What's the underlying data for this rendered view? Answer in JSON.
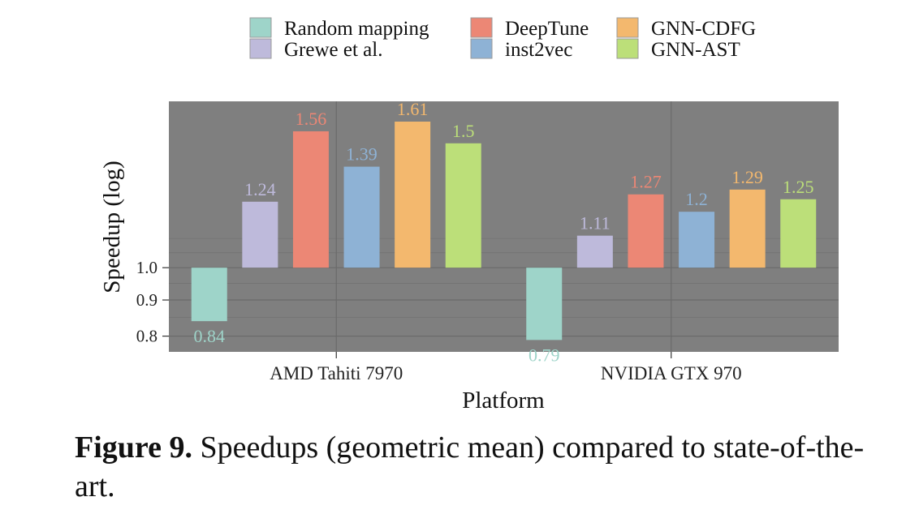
{
  "chart_data": {
    "type": "bar",
    "categories": [
      "AMD Tahiti 7970",
      "NVIDIA GTX 970"
    ],
    "series": [
      {
        "name": "Random mapping",
        "values": [
          0.84,
          0.79
        ],
        "color": "#9ed4c9"
      },
      {
        "name": "Grewe et al.",
        "values": [
          1.24,
          1.11
        ],
        "color": "#bebadb"
      },
      {
        "name": "DeepTune",
        "values": [
          1.56,
          1.27
        ],
        "color": "#ec8775"
      },
      {
        "name": "inst2vec",
        "values": [
          1.39,
          1.2
        ],
        "color": "#8eb2d5"
      },
      {
        "name": "GNN-CDFG",
        "values": [
          1.61,
          1.29
        ],
        "color": "#f3b86e"
      },
      {
        "name": "GNN-AST",
        "values": [
          1.5,
          1.25
        ],
        "color": "#bcdf79"
      }
    ],
    "value_labels": [
      [
        "0.84",
        "0.79"
      ],
      [
        "1.24",
        "1.11"
      ],
      [
        "1.56",
        "1.27"
      ],
      [
        "1.39",
        "1.2"
      ],
      [
        "1.61",
        "1.29"
      ],
      [
        "1.5",
        "1.25"
      ]
    ],
    "xlabel": "Platform",
    "ylabel": "Speedup (log)",
    "y_scale": "log",
    "y_ticks": [
      "0.8",
      "0.9",
      "1.0"
    ],
    "y_tick_values": [
      0.8,
      0.9,
      1.0
    ],
    "ylim": [
      0.76,
      1.72
    ],
    "baseline": 1.0,
    "grid": true,
    "legend_position": "top",
    "panel_color": "#7f7f7f"
  },
  "caption": {
    "label": "Figure 9.",
    "text": " Speedups (geometric mean) compared to state-of-the-art."
  }
}
